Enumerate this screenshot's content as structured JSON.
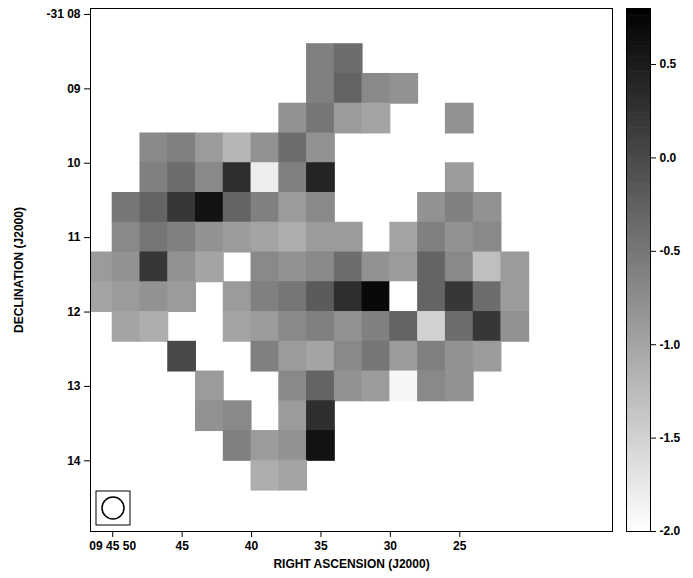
{
  "chart_data": {
    "type": "heatmap",
    "xlabel": "RIGHT ASCENSION (J2000)",
    "ylabel": "DECLINATION (J2000)",
    "xlim": [
      51.6,
      14.0
    ],
    "ylim": [
      14.95,
      7.92
    ],
    "xticks": [
      {
        "value": 50,
        "label": "09 45 50"
      },
      45,
      40,
      35,
      30,
      25
    ],
    "yticks": [
      {
        "value": 8,
        "label": "-31 08"
      },
      {
        "value": 9,
        "label": "09"
      },
      10,
      11,
      12,
      13,
      14
    ],
    "x": [
      51,
      49,
      47,
      45,
      43,
      41,
      39,
      37,
      35,
      33,
      31,
      29,
      27,
      25,
      23,
      21
    ],
    "y": [
      8.6,
      9.0,
      9.4,
      9.8,
      10.2,
      10.6,
      11.0,
      11.4,
      11.8,
      12.2,
      12.6,
      13.0,
      13.4,
      13.8,
      14.2
    ],
    "cells": [
      [
        null,
        null,
        null,
        null,
        null,
        null,
        null,
        null,
        -0.6,
        -0.4,
        null,
        null,
        null,
        null,
        null,
        null
      ],
      [
        null,
        null,
        null,
        null,
        null,
        null,
        null,
        null,
        -0.6,
        -0.3,
        -0.7,
        -0.8,
        null,
        null,
        null,
        null
      ],
      [
        null,
        null,
        null,
        null,
        null,
        null,
        null,
        -0.8,
        -0.5,
        -0.9,
        -1.0,
        null,
        null,
        -0.8,
        null,
        null
      ],
      [
        null,
        null,
        -0.7,
        -0.6,
        -0.9,
        -1.2,
        -0.8,
        -0.4,
        -0.8,
        null,
        null,
        null,
        null,
        null,
        null,
        null
      ],
      [
        null,
        null,
        -0.6,
        -0.4,
        -0.7,
        0.3,
        -1.8,
        -0.6,
        0.4,
        null,
        null,
        null,
        null,
        -0.9,
        null,
        null
      ],
      [
        null,
        -0.5,
        -0.3,
        0.2,
        0.6,
        -0.3,
        -0.6,
        -0.9,
        -0.7,
        null,
        null,
        null,
        -0.8,
        -0.6,
        -0.8,
        null
      ],
      [
        null,
        -0.7,
        -0.5,
        -0.6,
        -0.8,
        -0.9,
        -1.0,
        -1.1,
        -0.9,
        -0.9,
        null,
        -1.0,
        -0.6,
        -0.8,
        -0.7,
        null
      ],
      [
        -0.9,
        -0.8,
        0.2,
        -0.8,
        -1.0,
        null,
        -0.7,
        -0.8,
        -0.7,
        -0.4,
        -0.8,
        -0.9,
        -0.3,
        -0.7,
        -1.3,
        -0.9
      ],
      [
        -1.0,
        -0.9,
        -0.8,
        -0.9,
        null,
        -0.9,
        -0.6,
        -0.5,
        -0.2,
        0.3,
        0.7,
        -2.0,
        -0.3,
        0.2,
        -0.4,
        -0.9
      ],
      [
        null,
        -1.0,
        -1.1,
        null,
        null,
        -1.0,
        -0.9,
        -0.7,
        -0.6,
        -0.8,
        -0.6,
        -0.3,
        -1.5,
        -0.4,
        0.2,
        -0.8
      ],
      [
        null,
        null,
        null,
        0.0,
        null,
        null,
        -0.6,
        -0.9,
        -1.0,
        -0.7,
        -0.5,
        -0.9,
        -0.6,
        -0.8,
        -0.9,
        null
      ],
      [
        null,
        null,
        null,
        null,
        -0.9,
        null,
        null,
        -0.7,
        -0.3,
        -0.8,
        -0.9,
        -1.9,
        -0.7,
        -0.8,
        null,
        null
      ],
      [
        null,
        null,
        null,
        null,
        -0.8,
        -0.7,
        null,
        -0.9,
        0.3,
        null,
        null,
        null,
        null,
        null,
        null,
        null
      ],
      [
        null,
        null,
        null,
        null,
        null,
        -0.6,
        -0.9,
        -0.8,
        0.6,
        null,
        null,
        null,
        null,
        null,
        null,
        null
      ],
      [
        null,
        null,
        null,
        null,
        null,
        null,
        -1.1,
        -1.0,
        null,
        null,
        null,
        null,
        null,
        null,
        null,
        null
      ]
    ],
    "colorbar_range": [
      -2.0,
      0.8
    ],
    "colorbar_ticks": [
      0.5,
      {
        "value": 0,
        "label": "0.0"
      },
      -0.5,
      {
        "value": -1,
        "label": "-1.0"
      },
      -1.5,
      {
        "value": -2,
        "label": "-2.0"
      }
    ]
  }
}
